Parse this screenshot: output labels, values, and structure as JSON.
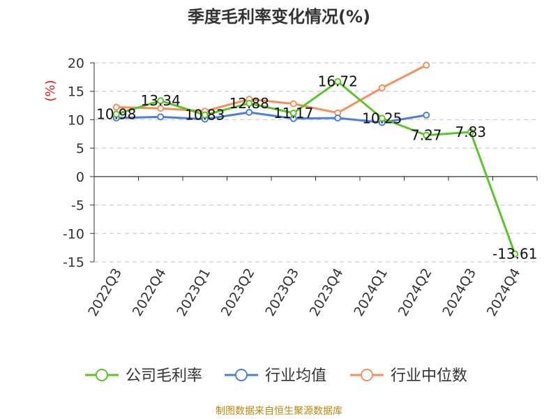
{
  "chart_data": {
    "type": "line",
    "title": "季度毛利率变化情况(%)",
    "ylabel": "(%)",
    "ylim": [
      -15,
      20
    ],
    "yticks": [
      20,
      15,
      10,
      5,
      0,
      -5,
      -10,
      -15
    ],
    "grid": true,
    "legend_position": "bottom",
    "categories": [
      "2022Q3",
      "2022Q4",
      "2023Q1",
      "2023Q2",
      "2023Q3",
      "2023Q4",
      "2024Q1",
      "2024Q2",
      "2024Q3",
      "2024Q4"
    ],
    "series": [
      {
        "name": "公司毛利率",
        "color": "#5cc329",
        "values": [
          10.98,
          13.34,
          10.83,
          12.88,
          11.17,
          16.72,
          10.25,
          7.27,
          7.83,
          -13.61
        ],
        "labels": [
          "10.98",
          "13.34",
          "10.83",
          "12.88",
          "11.17",
          "16.72",
          "10.25",
          "7.27",
          "7.83",
          "-13.61"
        ]
      },
      {
        "name": "行业均值",
        "color": "#4c7fd9",
        "values": [
          10.3,
          10.5,
          10.1,
          11.3,
          10.2,
          10.3,
          9.5,
          10.8,
          null,
          null
        ]
      },
      {
        "name": "行业中位数",
        "color": "#f58f5c",
        "values": [
          12.2,
          12.0,
          11.5,
          13.6,
          12.8,
          11.2,
          15.6,
          19.6,
          null,
          null
        ]
      }
    ]
  },
  "footer": {
    "source": "制图数据来自恒生聚源数据库"
  }
}
